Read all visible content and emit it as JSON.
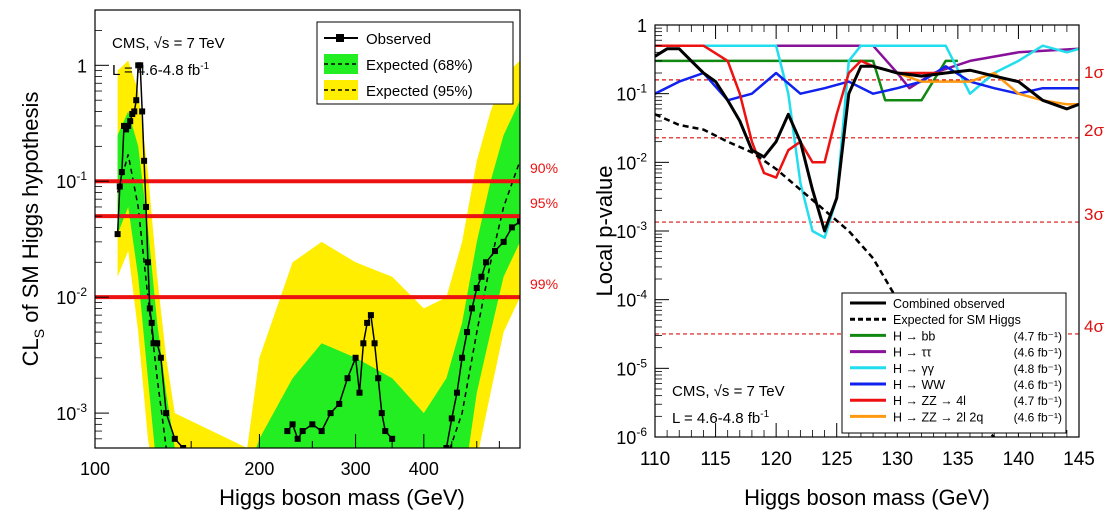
{
  "chart_data": [
    {
      "type": "line",
      "xscale": "log",
      "yscale": "log",
      "xlim": [
        100,
        600
      ],
      "ylim": [
        0.0005,
        3
      ],
      "x_ticks": [
        {
          "value": 100,
          "label": "100"
        },
        {
          "value": 200,
          "label": "200"
        },
        {
          "value": 300,
          "label": "300"
        },
        {
          "value": 400,
          "label": "400"
        }
      ],
      "y_ticks": [
        {
          "value": 0.001,
          "base": "10",
          "exp": "-3"
        },
        {
          "value": 0.01,
          "base": "10",
          "exp": "-2"
        },
        {
          "value": 0.1,
          "base": "10",
          "exp": "-1"
        },
        {
          "value": 1,
          "base": "1",
          "exp": ""
        }
      ],
      "xlabel": "Higgs boson mass (GeV)",
      "ylabel": {
        "main": "CL",
        "sub": "S",
        "rest": " of SM Higgs hypothesis"
      },
      "annotation": {
        "line1_prefix": "CMS, ",
        "line1_sqrt": "√s",
        "line1_suffix": " = 7 TeV",
        "line2_prefix": "L = 4.6-4.8 fb",
        "line2_sup": "-1"
      },
      "legend_position": "top-right",
      "legend": [
        {
          "label": "Observed",
          "style": "observed"
        },
        {
          "label": "Expected (68%)",
          "style": "band68"
        },
        {
          "label": "Expected (95%)",
          "style": "band95"
        }
      ],
      "thresholds": [
        {
          "value": 0.1,
          "label": "90%"
        },
        {
          "value": 0.05,
          "label": "95%"
        },
        {
          "value": 0.01,
          "label": "99%"
        }
      ],
      "colors": {
        "band68": "#22ee22",
        "band95": "#ffee00",
        "observed": "#000000",
        "threshold": "#ee1111"
      },
      "expected": {
        "x": [
          110,
          115,
          120,
          125,
          130,
          135,
          140,
          190,
          200,
          230,
          260,
          300,
          350,
          400,
          440,
          470,
          500,
          530,
          560,
          600
        ],
        "median": [
          0.08,
          0.17,
          0.06,
          0.01,
          0.002,
          0.0005,
          0.0002,
          0.0002,
          0.0002,
          0.0002,
          0.0002,
          0.0002,
          0.0002,
          0.0002,
          0.0004,
          0.001,
          0.005,
          0.02,
          0.06,
          0.15
        ],
        "band68_low": [
          0.035,
          0.06,
          0.015,
          0.002,
          0.0003,
          0.0002,
          0.0002,
          0.0002,
          0.0002,
          0.0002,
          0.0002,
          0.0002,
          0.0002,
          0.0002,
          0.0002,
          0.0002,
          0.0015,
          0.005,
          0.015,
          0.03
        ],
        "band68_high": [
          0.25,
          0.4,
          0.2,
          0.04,
          0.006,
          0.0015,
          0.0005,
          0.0003,
          0.0006,
          0.002,
          0.004,
          0.003,
          0.002,
          0.001,
          0.002,
          0.006,
          0.03,
          0.1,
          0.25,
          0.5
        ],
        "band95_low": [
          0.015,
          0.025,
          0.005,
          0.0006,
          0.0002,
          0.0002,
          0.0002,
          0.0002,
          0.0002,
          0.0002,
          0.0002,
          0.0002,
          0.0002,
          0.0002,
          0.0002,
          0.0002,
          0.0004,
          0.0015,
          0.005,
          0.01
        ],
        "band95_high": [
          0.9,
          1.1,
          0.6,
          0.12,
          0.015,
          0.003,
          0.001,
          0.0005,
          0.003,
          0.02,
          0.03,
          0.02,
          0.015,
          0.008,
          0.01,
          0.03,
          0.15,
          0.4,
          0.8,
          1.1
        ]
      },
      "observed": {
        "x": [
          110,
          111,
          112,
          113,
          114,
          115,
          116,
          117,
          118,
          119,
          120,
          121,
          122,
          123,
          124,
          125,
          126,
          127,
          128,
          129,
          130,
          132,
          135,
          140,
          145
        ],
        "y": [
          0.035,
          0.09,
          0.12,
          0.3,
          0.28,
          0.3,
          0.33,
          0.38,
          0.4,
          0.5,
          1.0,
          1.0,
          0.4,
          0.15,
          0.06,
          0.02,
          0.008,
          0.006,
          0.004,
          0.004,
          0.004,
          0.003,
          0.001,
          0.0006,
          0.0005
        ],
        "x2": [
          225,
          230,
          235,
          240,
          250,
          260,
          270,
          280,
          290,
          300,
          305,
          310,
          315,
          320,
          325,
          330,
          335,
          340,
          350
        ],
        "y2": [
          0.0007,
          0.0008,
          0.0006,
          0.0007,
          0.0008,
          0.0007,
          0.001,
          0.0012,
          0.002,
          0.003,
          0.0015,
          0.004,
          0.006,
          0.007,
          0.004,
          0.002,
          0.001,
          0.0007,
          0.0006
        ],
        "x3": [
          440,
          450,
          460,
          470,
          480,
          490,
          500,
          510,
          520,
          540,
          560,
          580,
          600
        ],
        "y3": [
          0.0005,
          0.0009,
          0.0015,
          0.003,
          0.005,
          0.008,
          0.012,
          0.015,
          0.02,
          0.025,
          0.03,
          0.04,
          0.045
        ]
      }
    },
    {
      "type": "line",
      "yscale": "log",
      "xlim": [
        110,
        145
      ],
      "ylim": [
        1e-06,
        1
      ],
      "x_ticks": [
        {
          "value": 110,
          "label": "110"
        },
        {
          "value": 115,
          "label": "115"
        },
        {
          "value": 120,
          "label": "120"
        },
        {
          "value": 125,
          "label": "125"
        },
        {
          "value": 130,
          "label": "130"
        },
        {
          "value": 135,
          "label": "135"
        },
        {
          "value": 140,
          "label": "140"
        },
        {
          "value": 145,
          "label": "145"
        }
      ],
      "y_ticks": [
        {
          "value": 1e-06,
          "base": "10",
          "exp": "-6"
        },
        {
          "value": 1e-05,
          "base": "10",
          "exp": "-5"
        },
        {
          "value": 0.0001,
          "base": "10",
          "exp": "-4"
        },
        {
          "value": 0.001,
          "base": "10",
          "exp": "-3"
        },
        {
          "value": 0.01,
          "base": "10",
          "exp": "-2"
        },
        {
          "value": 0.1,
          "base": "10",
          "exp": "-1"
        },
        {
          "value": 1,
          "base": "1",
          "exp": ""
        }
      ],
      "xlabel": "Higgs boson mass (GeV)",
      "ylabel": "Local p-value",
      "annotation": {
        "line1_prefix": "CMS, ",
        "line1_sqrt": "√s",
        "line1_suffix": " = 7 TeV",
        "line2_prefix": "L = 4.6-4.8 fb",
        "line2_sup": "-1"
      },
      "legend_position": "bottom-right",
      "sigma_lines": [
        {
          "value": 0.1587,
          "label": "1σ"
        },
        {
          "value": 0.02275,
          "label": "2σ"
        },
        {
          "value": 0.00135,
          "label": "3σ"
        },
        {
          "value": 3.17e-05,
          "label": "4σ"
        }
      ],
      "sigma_color": "#dd1111",
      "series": [
        {
          "name": "Combined observed",
          "lumi": "",
          "color": "#000000",
          "dash": "",
          "width": 3,
          "x": [
            110,
            111,
            112,
            113,
            114,
            115,
            116,
            117,
            118,
            119,
            120,
            121,
            122,
            123,
            124,
            125,
            126,
            127,
            128,
            130,
            132,
            134,
            136,
            138,
            140,
            142,
            144,
            145
          ],
          "y": [
            0.35,
            0.45,
            0.45,
            0.3,
            0.2,
            0.15,
            0.08,
            0.04,
            0.015,
            0.012,
            0.02,
            0.05,
            0.02,
            0.004,
            0.001,
            0.003,
            0.1,
            0.25,
            0.25,
            0.2,
            0.18,
            0.2,
            0.22,
            0.18,
            0.15,
            0.08,
            0.06,
            0.07
          ]
        },
        {
          "name": "Expected for SM Higgs",
          "lumi": "",
          "color": "#000000",
          "dash": "6,4",
          "width": 2.5,
          "x": [
            110,
            112,
            114,
            116,
            118,
            120,
            122,
            124,
            126,
            128,
            130,
            132,
            134,
            136,
            138
          ],
          "y": [
            0.05,
            0.035,
            0.03,
            0.02,
            0.014,
            0.008,
            0.004,
            0.002,
            0.001,
            0.0004,
            0.0001,
            3e-05,
            8e-06,
            2e-06,
            1e-06
          ]
        },
        {
          "name": "H → bb",
          "lumi": "(4.7 fb⁻¹)",
          "color": "#118811",
          "dash": "",
          "width": 2.5,
          "x": [
            110,
            112,
            114,
            116,
            118,
            120,
            122,
            124,
            126,
            128,
            129,
            130,
            132,
            134,
            135
          ],
          "y": [
            0.3,
            0.3,
            0.3,
            0.3,
            0.3,
            0.3,
            0.3,
            0.3,
            0.3,
            0.3,
            0.08,
            0.08,
            0.08,
            0.3,
            0.3
          ]
        },
        {
          "name": "H → ττ",
          "lumi": "(4.6 fb⁻¹)",
          "color": "#881199",
          "dash": "",
          "width": 2.5,
          "x": [
            110,
            114,
            118,
            122,
            126,
            128,
            130,
            131,
            133,
            136,
            140,
            145
          ],
          "y": [
            0.5,
            0.5,
            0.5,
            0.5,
            0.5,
            0.5,
            0.2,
            0.12,
            0.2,
            0.3,
            0.4,
            0.45
          ]
        },
        {
          "name": "H → γγ",
          "lumi": "(4.8 fb⁻¹)",
          "color": "#22ddee",
          "dash": "",
          "width": 2.5,
          "x": [
            110,
            112,
            114,
            116,
            118,
            120,
            121,
            122,
            123,
            124,
            125,
            126,
            127,
            128,
            130,
            132,
            134,
            136,
            138,
            140,
            142,
            144,
            145
          ],
          "y": [
            0.5,
            0.5,
            0.5,
            0.5,
            0.5,
            0.5,
            0.1,
            0.005,
            0.001,
            0.0008,
            0.003,
            0.3,
            0.5,
            0.5,
            0.5,
            0.5,
            0.5,
            0.1,
            0.2,
            0.3,
            0.5,
            0.4,
            0.45
          ]
        },
        {
          "name": "H → WW",
          "lumi": "(4.6 fb⁻¹)",
          "color": "#1122ee",
          "dash": "",
          "width": 2.5,
          "x": [
            110,
            112,
            114,
            116,
            118,
            120,
            122,
            124,
            126,
            128,
            130,
            132,
            134,
            136,
            138,
            140,
            142,
            145
          ],
          "y": [
            0.1,
            0.15,
            0.2,
            0.08,
            0.1,
            0.2,
            0.1,
            0.12,
            0.15,
            0.1,
            0.12,
            0.15,
            0.25,
            0.15,
            0.12,
            0.1,
            0.12,
            0.12
          ]
        },
        {
          "name": "H → ZZ → 4l",
          "lumi": "(4.7 fb⁻¹)",
          "color": "#ee1111",
          "dash": "",
          "width": 2.5,
          "x": [
            110,
            112,
            114,
            116,
            117,
            118,
            119,
            120,
            121,
            122,
            123,
            124,
            125,
            126,
            127,
            128,
            130,
            132,
            134
          ],
          "y": [
            0.5,
            0.5,
            0.5,
            0.3,
            0.1,
            0.02,
            0.007,
            0.006,
            0.015,
            0.02,
            0.01,
            0.01,
            0.05,
            0.2,
            0.3,
            0.25,
            0.2,
            0.2,
            0.2
          ]
        },
        {
          "name": "H → ZZ → 2l 2q",
          "lumi": "(4.6 fb⁻¹)",
          "color": "#ff9911",
          "dash": "",
          "width": 2.5,
          "x": [
            130,
            132,
            134,
            136,
            138,
            140,
            142,
            144,
            145
          ],
          "y": [
            0.2,
            0.15,
            0.15,
            0.15,
            0.2,
            0.1,
            0.08,
            0.07,
            0.07
          ]
        }
      ]
    }
  ]
}
